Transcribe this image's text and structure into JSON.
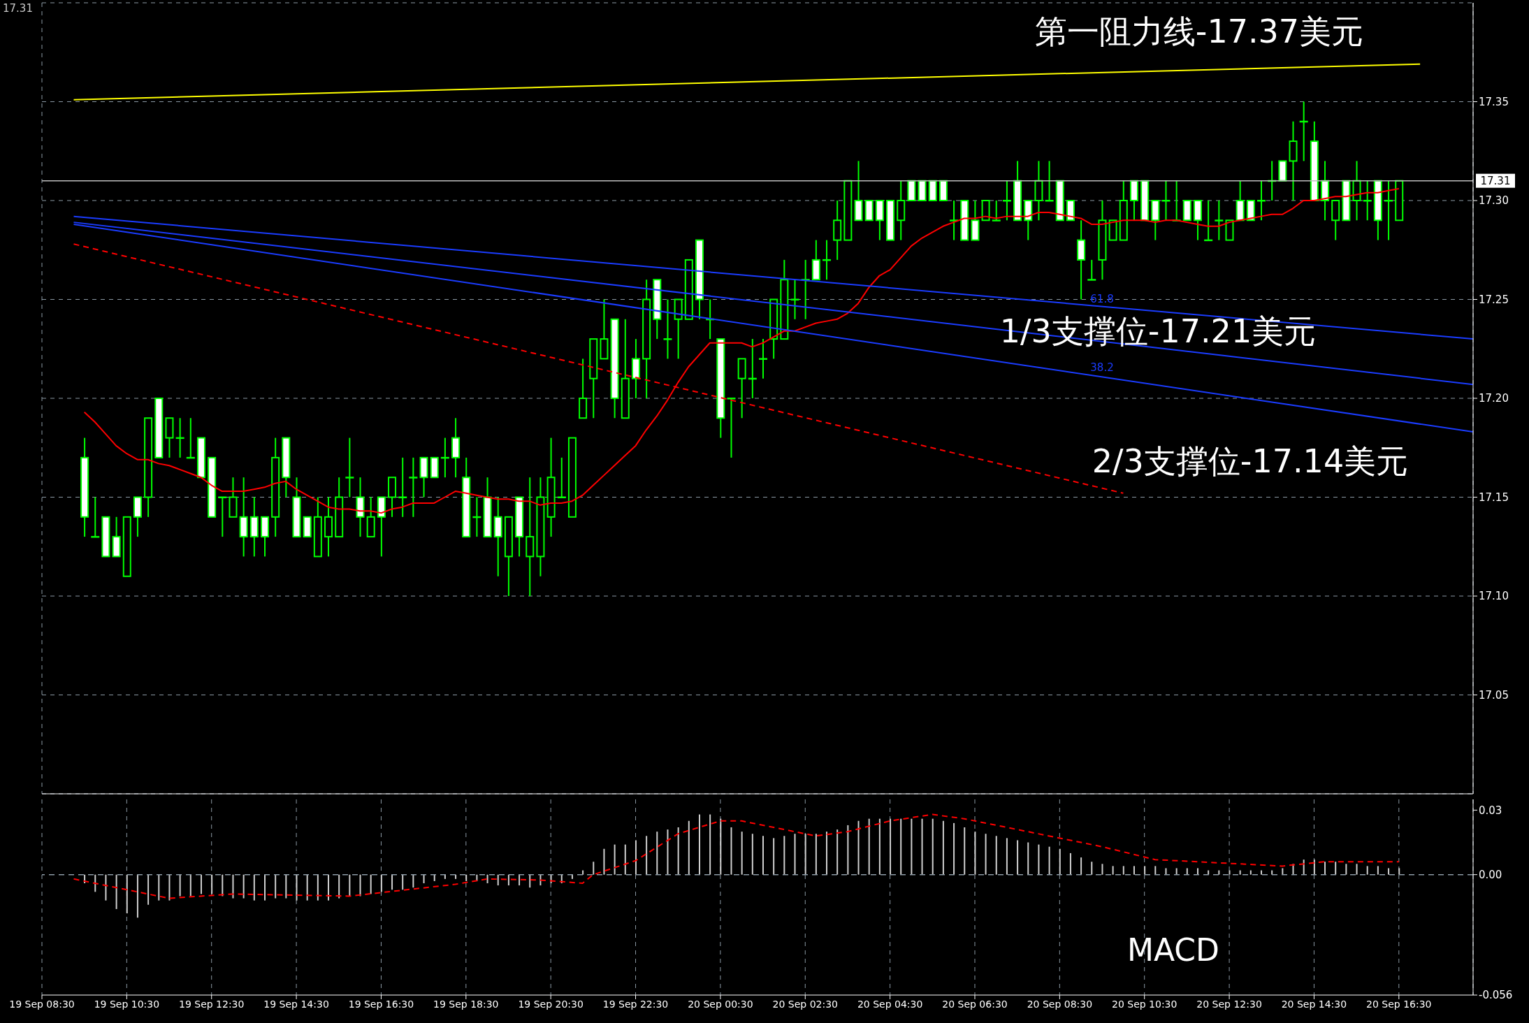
{
  "chart_data": [
    {
      "type": "candlestick",
      "x": [
        "--09-19T09:30",
        "--09-19T09:45",
        "--09-19T10:00",
        "--09-19T10:15",
        "--09-19T10:30",
        "--09-19T10:45",
        "--09-19T11:00",
        "--09-19T11:15",
        "--09-19T11:30",
        "--09-19T11:45",
        "--09-19T12:00",
        "--09-19T12:15",
        "--09-19T12:30",
        "--09-19T12:45",
        "--09-19T13:00",
        "--09-19T13:15",
        "--09-19T13:30",
        "--09-19T13:45",
        "--09-19T14:00",
        "--09-19T14:15",
        "--09-19T14:30",
        "--09-19T14:45",
        "--09-19T15:00",
        "--09-19T15:15",
        "--09-19T15:30",
        "--09-19T15:45",
        "--09-19T16:00",
        "--09-19T16:15",
        "--09-19T16:30",
        "--09-19T16:45",
        "--09-19T17:00",
        "--09-19T17:15",
        "--09-19T17:30",
        "--09-19T17:45",
        "--09-19T18:00",
        "--09-19T18:15",
        "--09-19T18:30",
        "--09-19T18:45",
        "--09-19T19:00",
        "--09-19T19:15",
        "--09-19T19:30",
        "--09-19T19:45",
        "--09-19T20:00",
        "--09-19T20:15",
        "--09-19T20:30",
        "--09-19T20:45",
        "--09-19T21:00",
        "--09-19T21:15",
        "--09-19T21:30",
        "--09-19T21:45",
        "--09-19T22:00",
        "--09-19T22:15",
        "--09-19T22:30",
        "--09-19T22:45",
        "--09-19T23:00",
        "--09-19T23:15",
        "--09-19T23:30",
        "--09-19T23:45",
        "--09-20T00:00",
        "--09-20T00:15",
        "--09-20T00:30",
        "--09-20T00:45",
        "--09-20T01:00",
        "--09-20T01:15",
        "--09-20T01:30",
        "--09-20T01:45",
        "--09-20T02:00",
        "--09-20T02:15",
        "--09-20T02:30",
        "--09-20T02:45",
        "--09-20T03:00",
        "--09-20T03:15",
        "--09-20T03:30",
        "--09-20T03:45",
        "--09-20T04:00",
        "--09-20T04:15",
        "--09-20T04:30",
        "--09-20T04:45",
        "--09-20T05:00",
        "--09-20T05:15",
        "--09-20T05:30",
        "--09-20T05:45",
        "--09-20T06:00",
        "--09-20T06:15",
        "--09-20T06:30",
        "--09-20T06:45",
        "--09-20T07:00",
        "--09-20T07:15",
        "--09-20T07:30",
        "--09-20T07:45",
        "--09-20T08:00",
        "--09-20T08:15",
        "--09-20T08:30",
        "--09-20T08:45",
        "--09-20T09:00",
        "--09-20T09:15",
        "--09-20T09:30",
        "--09-20T09:45",
        "--09-20T10:00",
        "--09-20T10:15",
        "--09-20T10:30",
        "--09-20T10:45",
        "--09-20T11:00",
        "--09-20T11:15",
        "--09-20T11:30",
        "--09-20T11:45",
        "--09-20T12:00",
        "--09-20T12:15",
        "--09-20T12:30",
        "--09-20T12:45",
        "--09-20T13:00",
        "--09-20T13:15",
        "--09-20T13:30",
        "--09-20T13:45",
        "--09-20T14:00",
        "--09-20T14:15",
        "--09-20T14:30",
        "--09-20T14:45",
        "--09-20T15:00",
        "--09-20T15:15",
        "--09-20T15:30",
        "--09-20T15:45",
        "--09-20T16:00",
        "--09-20T16:15",
        "--09-20T16:30"
      ],
      "series": [
        {
          "color": "#00ff00",
          "ohlc": [
            [
              17.17,
              17.18,
              17.13,
              17.14
            ],
            [
              17.13,
              17.15,
              17.13,
              17.13
            ],
            [
              17.14,
              17.14,
              17.12,
              17.12
            ],
            [
              17.13,
              17.14,
              17.12,
              17.12
            ],
            [
              17.11,
              17.14,
              17.11,
              17.14
            ],
            [
              17.15,
              17.15,
              17.13,
              17.14
            ],
            [
              17.15,
              17.19,
              17.14,
              17.19
            ],
            [
              17.2,
              17.2,
              17.17,
              17.17
            ],
            [
              17.18,
              17.19,
              17.17,
              17.19
            ],
            [
              17.18,
              17.19,
              17.17,
              17.18
            ],
            [
              17.17,
              17.19,
              17.17,
              17.17
            ],
            [
              17.18,
              17.18,
              17.16,
              17.16
            ],
            [
              17.17,
              17.17,
              17.14,
              17.14
            ],
            [
              17.15,
              17.15,
              17.13,
              17.15
            ],
            [
              17.14,
              17.16,
              17.14,
              17.15
            ],
            [
              17.14,
              17.16,
              17.12,
              17.13
            ],
            [
              17.14,
              17.15,
              17.12,
              17.13
            ],
            [
              17.14,
              17.14,
              17.12,
              17.13
            ],
            [
              17.14,
              17.18,
              17.13,
              17.17
            ],
            [
              17.18,
              17.18,
              17.15,
              17.16
            ],
            [
              17.15,
              17.16,
              17.13,
              17.13
            ],
            [
              17.14,
              17.14,
              17.13,
              17.13
            ],
            [
              17.12,
              17.15,
              17.12,
              17.14
            ],
            [
              17.13,
              17.15,
              17.12,
              17.14
            ],
            [
              17.13,
              17.16,
              17.13,
              17.15
            ],
            [
              17.16,
              17.18,
              17.15,
              17.16
            ],
            [
              17.15,
              17.16,
              17.13,
              17.14
            ],
            [
              17.13,
              17.15,
              17.13,
              17.14
            ],
            [
              17.15,
              17.15,
              17.12,
              17.14
            ],
            [
              17.15,
              17.16,
              17.14,
              17.16
            ],
            [
              17.15,
              17.17,
              17.14,
              17.15
            ],
            [
              17.16,
              17.17,
              17.14,
              17.16
            ],
            [
              17.17,
              17.17,
              17.15,
              17.16
            ],
            [
              17.17,
              17.17,
              17.16,
              17.16
            ],
            [
              17.17,
              17.18,
              17.16,
              17.17
            ],
            [
              17.18,
              17.19,
              17.16,
              17.17
            ],
            [
              17.16,
              17.17,
              17.13,
              17.13
            ],
            [
              17.14,
              17.15,
              17.13,
              17.14
            ],
            [
              17.15,
              17.16,
              17.13,
              17.13
            ],
            [
              17.14,
              17.15,
              17.11,
              17.13
            ],
            [
              17.12,
              17.14,
              17.1,
              17.14
            ],
            [
              17.15,
              17.15,
              17.12,
              17.13
            ],
            [
              17.12,
              17.16,
              17.1,
              17.13
            ],
            [
              17.12,
              17.16,
              17.11,
              17.15
            ],
            [
              17.14,
              17.18,
              17.13,
              17.16
            ],
            [
              17.15,
              17.17,
              17.15,
              17.15
            ],
            [
              17.14,
              17.18,
              17.14,
              17.18
            ],
            [
              17.19,
              17.22,
              17.19,
              17.2
            ],
            [
              17.21,
              17.23,
              17.19,
              17.23
            ],
            [
              17.22,
              17.25,
              17.22,
              17.23
            ],
            [
              17.24,
              17.24,
              17.19,
              17.2
            ],
            [
              17.19,
              17.24,
              17.19,
              17.21
            ],
            [
              17.22,
              17.23,
              17.2,
              17.21
            ],
            [
              17.22,
              17.26,
              17.2,
              17.25
            ],
            [
              17.26,
              17.26,
              17.23,
              17.24
            ],
            [
              17.23,
              17.25,
              17.22,
              17.23
            ],
            [
              17.24,
              17.25,
              17.22,
              17.25
            ],
            [
              17.24,
              17.27,
              17.24,
              17.27
            ],
            [
              17.28,
              17.28,
              17.24,
              17.25
            ],
            [
              17.24,
              17.25,
              17.23,
              17.24
            ],
            [
              17.23,
              17.23,
              17.18,
              17.19
            ],
            [
              17.2,
              17.2,
              17.17,
              17.2
            ],
            [
              17.21,
              17.22,
              17.19,
              17.22
            ],
            [
              17.21,
              17.23,
              17.2,
              17.21
            ],
            [
              17.22,
              17.23,
              17.21,
              17.22
            ],
            [
              17.23,
              17.25,
              17.22,
              17.25
            ],
            [
              17.23,
              17.27,
              17.23,
              17.26
            ],
            [
              17.25,
              17.26,
              17.24,
              17.25
            ],
            [
              17.26,
              17.27,
              17.24,
              17.26
            ],
            [
              17.27,
              17.28,
              17.26,
              17.26
            ],
            [
              17.27,
              17.28,
              17.26,
              17.27
            ],
            [
              17.28,
              17.3,
              17.27,
              17.29
            ],
            [
              17.28,
              17.31,
              17.28,
              17.31
            ],
            [
              17.3,
              17.32,
              17.29,
              17.29
            ],
            [
              17.3,
              17.3,
              17.29,
              17.29
            ],
            [
              17.3,
              17.3,
              17.28,
              17.29
            ],
            [
              17.3,
              17.3,
              17.28,
              17.28
            ],
            [
              17.29,
              17.31,
              17.28,
              17.3
            ],
            [
              17.31,
              17.31,
              17.3,
              17.3
            ],
            [
              17.31,
              17.31,
              17.3,
              17.3
            ],
            [
              17.31,
              17.31,
              17.3,
              17.3
            ],
            [
              17.31,
              17.31,
              17.3,
              17.3
            ],
            [
              17.29,
              17.3,
              17.28,
              17.29
            ],
            [
              17.3,
              17.3,
              17.28,
              17.28
            ],
            [
              17.29,
              17.3,
              17.28,
              17.28
            ],
            [
              17.29,
              17.3,
              17.29,
              17.3
            ],
            [
              17.29,
              17.3,
              17.29,
              17.29
            ],
            [
              17.3,
              17.31,
              17.29,
              17.3
            ],
            [
              17.31,
              17.32,
              17.29,
              17.29
            ],
            [
              17.3,
              17.3,
              17.28,
              17.29
            ],
            [
              17.3,
              17.32,
              17.29,
              17.31
            ],
            [
              17.3,
              17.32,
              17.3,
              17.3
            ],
            [
              17.31,
              17.31,
              17.29,
              17.29
            ],
            [
              17.3,
              17.3,
              17.29,
              17.29
            ],
            [
              17.28,
              17.29,
              17.25,
              17.27
            ],
            [
              17.26,
              17.27,
              17.26,
              17.26
            ],
            [
              17.27,
              17.3,
              17.26,
              17.29
            ],
            [
              17.28,
              17.29,
              17.28,
              17.29
            ],
            [
              17.28,
              17.31,
              17.28,
              17.3
            ],
            [
              17.31,
              17.31,
              17.29,
              17.3
            ],
            [
              17.31,
              17.31,
              17.29,
              17.29
            ],
            [
              17.3,
              17.3,
              17.28,
              17.29
            ],
            [
              17.3,
              17.31,
              17.29,
              17.3
            ],
            [
              17.29,
              17.31,
              17.29,
              17.29
            ],
            [
              17.3,
              17.3,
              17.29,
              17.29
            ],
            [
              17.3,
              17.3,
              17.28,
              17.29
            ],
            [
              17.28,
              17.3,
              17.28,
              17.28
            ],
            [
              17.29,
              17.3,
              17.28,
              17.29
            ],
            [
              17.28,
              17.29,
              17.28,
              17.29
            ],
            [
              17.3,
              17.31,
              17.29,
              17.29
            ],
            [
              17.3,
              17.3,
              17.29,
              17.29
            ],
            [
              17.3,
              17.31,
              17.29,
              17.3
            ],
            [
              17.31,
              17.32,
              17.3,
              17.31
            ],
            [
              17.32,
              17.32,
              17.31,
              17.31
            ],
            [
              17.32,
              17.34,
              17.3,
              17.33
            ],
            [
              17.34,
              17.35,
              17.32,
              17.34
            ],
            [
              17.33,
              17.34,
              17.3,
              17.3
            ],
            [
              17.31,
              17.32,
              17.29,
              17.3
            ],
            [
              17.29,
              17.3,
              17.28,
              17.3
            ],
            [
              17.31,
              17.31,
              17.29,
              17.29
            ],
            [
              17.3,
              17.32,
              17.29,
              17.31
            ],
            [
              17.3,
              17.31,
              17.29,
              17.3
            ],
            [
              17.31,
              17.31,
              17.28,
              17.29
            ],
            [
              17.3,
              17.31,
              17.28,
              17.3
            ],
            [
              17.29,
              17.31,
              17.29,
              17.31
            ]
          ]
        },
        {
          "type": "line",
          "color": "#ff0000",
          "values": [
            17.193,
            17.188,
            17.182,
            17.176,
            17.172,
            17.169,
            17.169,
            17.167,
            17.166,
            17.164,
            17.162,
            17.16,
            17.156,
            17.153,
            17.153,
            17.153,
            17.154,
            17.155,
            17.157,
            17.158,
            17.154,
            17.151,
            17.148,
            17.145,
            17.144,
            17.144,
            17.143,
            17.143,
            17.142,
            17.144,
            17.145,
            17.147,
            17.147,
            17.147,
            17.15,
            17.153,
            17.152,
            17.151,
            17.15,
            17.149,
            17.149,
            17.148,
            17.148,
            17.146,
            17.147,
            17.147,
            17.148,
            17.151,
            17.156,
            17.161,
            17.166,
            17.171,
            17.176,
            17.184,
            17.191,
            17.199,
            17.208,
            17.216,
            17.222,
            17.228,
            17.228,
            17.228,
            17.228,
            17.226,
            17.228,
            17.231,
            17.234,
            17.234,
            17.236,
            17.238,
            17.239,
            17.24,
            17.243,
            17.248,
            17.256,
            17.262,
            17.265,
            17.271,
            17.277,
            17.281,
            17.284,
            17.287,
            17.289,
            17.291,
            17.291,
            17.292,
            17.291,
            17.292,
            17.292,
            17.292,
            17.294,
            17.294,
            17.293,
            17.292,
            17.291,
            17.288,
            17.288,
            17.289,
            17.29,
            17.29,
            17.29,
            17.289,
            17.29,
            17.29,
            17.289,
            17.288,
            17.287,
            17.287,
            17.289,
            17.29,
            17.291,
            17.292,
            17.293,
            17.293,
            17.296,
            17.3,
            17.3,
            17.301,
            17.302,
            17.302,
            17.303,
            17.304,
            17.304,
            17.305,
            17.306
          ]
        },
        {
          "type": "line",
          "color": "#ff0000",
          "line_style": "dashed",
          "x": [
            "--09-19T09:15",
            "--09-20T10:00"
          ],
          "values": [
            17.278,
            17.152
          ]
        },
        {
          "type": "line",
          "color": "#1a3cff",
          "x": [
            "--09-19T09:15",
            "--09-20T18:15"
          ],
          "values": [
            17.292,
            17.23
          ]
        },
        {
          "type": "line",
          "color": "#1a3cff",
          "x": [
            "--09-19T09:15",
            "--09-20T18:15"
          ],
          "values": [
            17.289,
            17.207
          ]
        },
        {
          "type": "line",
          "color": "#1a3cff",
          "x": [
            "--09-19T09:15",
            "--09-20T18:15"
          ],
          "values": [
            17.288,
            17.183
          ]
        },
        {
          "type": "line",
          "color": "#ffff00",
          "x": [
            "--09-19T09:15",
            "--09-20T17:00"
          ],
          "values": [
            17.351,
            17.369
          ]
        }
      ],
      "xlim": [
        "--09-19T08:30",
        "--09-20T18:15"
      ],
      "xticks": [
        {
          "value": "--09-19T08:30",
          "label": "19 Sep 08:30"
        },
        {
          "value": "--09-19T10:30",
          "label": "19 Sep 10:30"
        },
        {
          "value": "--09-19T12:30",
          "label": "19 Sep 12:30"
        },
        {
          "value": "--09-19T14:30",
          "label": "19 Sep 14:30"
        },
        {
          "value": "--09-19T16:30",
          "label": "19 Sep 16:30"
        },
        {
          "value": "--09-19T18:30",
          "label": "19 Sep 18:30"
        },
        {
          "value": "--09-19T20:30",
          "label": "19 Sep 20:30"
        },
        {
          "value": "--09-19T22:30",
          "label": "19 Sep 22:30"
        },
        {
          "value": "--09-20T00:30",
          "label": "20 Sep 00:30"
        },
        {
          "value": "--09-20T02:30",
          "label": "20 Sep 02:30"
        },
        {
          "value": "--09-20T04:30",
          "label": "20 Sep 04:30"
        },
        {
          "value": "--09-20T06:30",
          "label": "20 Sep 06:30"
        },
        {
          "value": "--09-20T08:30",
          "label": "20 Sep 08:30"
        },
        {
          "value": "--09-20T10:30",
          "label": "20 Sep 10:30"
        },
        {
          "value": "--09-20T12:30",
          "label": "20 Sep 12:30"
        },
        {
          "value": "--09-20T14:30",
          "label": "20 Sep 14:30"
        },
        {
          "value": "--09-20T16:30",
          "label": "20 Sep 16:30"
        }
      ],
      "ylim": [
        17.0,
        17.4
      ],
      "yticks": [
        17.05,
        {
          "value": 17.1,
          "label": "17.10"
        },
        17.15,
        {
          "value": 17.2,
          "label": "17.20"
        },
        17.25,
        {
          "value": 17.3,
          "label": "17.30"
        },
        17.35
      ],
      "grid": true,
      "tick_labels": "y",
      "ref_lines": [
        {
          "axis": "y",
          "value": 17.31,
          "label": "17.31",
          "color": "#c0c0c0"
        }
      ],
      "annotations": [
        "17.31",
        "第一阻力线-17.37美元",
        "1/3支撑位-17.21美元",
        "2/3支撑位-17.14美元",
        "61.8",
        "38.2"
      ]
    },
    {
      "type": "bar",
      "x": [
        "--09-19T09:30",
        "--09-19T09:45",
        "--09-19T10:00",
        "--09-19T10:15",
        "--09-19T10:30",
        "--09-19T10:45",
        "--09-19T11:00",
        "--09-19T11:15",
        "--09-19T11:30",
        "--09-19T11:45",
        "--09-19T12:00",
        "--09-19T12:15",
        "--09-19T12:30",
        "--09-19T12:45",
        "--09-19T13:00",
        "--09-19T13:15",
        "--09-19T13:30",
        "--09-19T13:45",
        "--09-19T14:00",
        "--09-19T14:15",
        "--09-19T14:30",
        "--09-19T14:45",
        "--09-19T15:00",
        "--09-19T15:15",
        "--09-19T15:30",
        "--09-19T15:45",
        "--09-19T16:00",
        "--09-19T16:15",
        "--09-19T16:30",
        "--09-19T16:45",
        "--09-19T17:00",
        "--09-19T17:15",
        "--09-19T17:30",
        "--09-19T17:45",
        "--09-19T18:00",
        "--09-19T18:15",
        "--09-19T18:30",
        "--09-19T18:45",
        "--09-19T19:00",
        "--09-19T19:15",
        "--09-19T19:30",
        "--09-19T19:45",
        "--09-19T20:00",
        "--09-19T20:15",
        "--09-19T20:30",
        "--09-19T20:45",
        "--09-19T21:00",
        "--09-19T21:15",
        "--09-19T21:30",
        "--09-19T21:45",
        "--09-19T22:00",
        "--09-19T22:15",
        "--09-19T22:30",
        "--09-19T22:45",
        "--09-19T23:00",
        "--09-19T23:15",
        "--09-19T23:30",
        "--09-19T23:45",
        "--09-20T00:00",
        "--09-20T00:15",
        "--09-20T00:30",
        "--09-20T00:45",
        "--09-20T01:00",
        "--09-20T01:15",
        "--09-20T01:30",
        "--09-20T01:45",
        "--09-20T02:00",
        "--09-20T02:15",
        "--09-20T02:30",
        "--09-20T02:45",
        "--09-20T03:00",
        "--09-20T03:15",
        "--09-20T03:30",
        "--09-20T03:45",
        "--09-20T04:00",
        "--09-20T04:15",
        "--09-20T04:30",
        "--09-20T04:45",
        "--09-20T05:00",
        "--09-20T05:15",
        "--09-20T05:30",
        "--09-20T05:45",
        "--09-20T06:00",
        "--09-20T06:15",
        "--09-20T06:30",
        "--09-20T06:45",
        "--09-20T07:00",
        "--09-20T07:15",
        "--09-20T07:30",
        "--09-20T07:45",
        "--09-20T08:00",
        "--09-20T08:15",
        "--09-20T08:30",
        "--09-20T08:45",
        "--09-20T09:00",
        "--09-20T09:15",
        "--09-20T09:30",
        "--09-20T09:45",
        "--09-20T10:00",
        "--09-20T10:15",
        "--09-20T10:30",
        "--09-20T10:45",
        "--09-20T11:00",
        "--09-20T11:15",
        "--09-20T11:30",
        "--09-20T11:45",
        "--09-20T12:00",
        "--09-20T12:15",
        "--09-20T12:30",
        "--09-20T12:45",
        "--09-20T13:00",
        "--09-20T13:15",
        "--09-20T13:30",
        "--09-20T13:45",
        "--09-20T14:00",
        "--09-20T14:15",
        "--09-20T14:30",
        "--09-20T14:45",
        "--09-20T15:00",
        "--09-20T15:15",
        "--09-20T15:30",
        "--09-20T15:45",
        "--09-20T16:00",
        "--09-20T16:15",
        "--09-20T16:30"
      ],
      "series": [
        {
          "color": "#d0d0d0",
          "values": [
            -0.004,
            -0.008,
            -0.012,
            -0.016,
            -0.018,
            -0.02,
            -0.014,
            -0.012,
            -0.012,
            -0.01,
            -0.01,
            -0.009,
            -0.009,
            -0.01,
            -0.011,
            -0.011,
            -0.012,
            -0.012,
            -0.011,
            -0.011,
            -0.012,
            -0.012,
            -0.012,
            -0.012,
            -0.011,
            -0.01,
            -0.01,
            -0.009,
            -0.008,
            -0.007,
            -0.007,
            -0.006,
            -0.004,
            -0.003,
            -0.002,
            -0.002,
            -0.003,
            -0.003,
            -0.004,
            -0.005,
            -0.005,
            -0.005,
            -0.006,
            -0.005,
            -0.004,
            -0.004,
            -0.002,
            0.002,
            0.006,
            0.012,
            0.014,
            0.014,
            0.016,
            0.018,
            0.02,
            0.021,
            0.022,
            0.025,
            0.028,
            0.028,
            0.026,
            0.022,
            0.02,
            0.019,
            0.018,
            0.017,
            0.018,
            0.019,
            0.019,
            0.019,
            0.02,
            0.021,
            0.023,
            0.025,
            0.026,
            0.026,
            0.026,
            0.026,
            0.026,
            0.026,
            0.026,
            0.025,
            0.024,
            0.022,
            0.02,
            0.019,
            0.018,
            0.017,
            0.016,
            0.015,
            0.014,
            0.013,
            0.012,
            0.01,
            0.008,
            0.006,
            0.005,
            0.004,
            0.004,
            0.004,
            0.004,
            0.004,
            0.003,
            0.003,
            0.003,
            0.003,
            0.002,
            0.002,
            0.002,
            0.002,
            0.002,
            0.002,
            0.002,
            0.003,
            0.005,
            0.007,
            0.007,
            0.006,
            0.006,
            0.005,
            0.005,
            0.004,
            0.004,
            0.003,
            0.003
          ]
        },
        {
          "type": "line",
          "color": "#ff0000",
          "line_style": "dashed",
          "x": [
            "--09-19T09:15",
            "--09-19T11:30",
            "--09-19T13:00",
            "--09-19T15:45",
            "--09-19T18:15",
            "--09-19T19:00",
            "--09-19T20:15",
            "--09-19T21:15",
            "--09-19T21:30",
            "--09-19T22:30",
            "--09-19T23:30",
            "--09-20T00:30",
            "--09-20T01:00",
            "--09-20T02:45",
            "--09-20T03:30",
            "--09-20T04:30",
            "--09-20T05:30",
            "--09-20T06:15",
            "--09-20T07:45",
            "--09-20T09:30",
            "--09-20T10:45",
            "--09-20T12:45",
            "--09-20T13:45",
            "--09-20T14:45",
            "--09-20T16:30"
          ],
          "values": [
            -0.002,
            -0.011,
            -0.009,
            -0.01,
            -0.0045,
            -0.002,
            -0.0025,
            -0.004,
            0,
            0.0065,
            0.019,
            0.025,
            0.025,
            0.018,
            0.02,
            0.025,
            0.028,
            0.026,
            0.02,
            0.013,
            0.007,
            0.005,
            0.004,
            0.006,
            0.006
          ]
        }
      ],
      "xlim": [
        "--09-19T08:30",
        "--09-20T18:15"
      ],
      "xticks": [
        {
          "value": "--09-19T08:30",
          "label": "19 Sep 08:30"
        },
        {
          "value": "--09-19T10:30",
          "label": "19 Sep 10:30"
        },
        {
          "value": "--09-19T12:30",
          "label": "19 Sep 12:30"
        },
        {
          "value": "--09-19T14:30",
          "label": "19 Sep 14:30"
        },
        {
          "value": "--09-19T16:30",
          "label": "19 Sep 16:30"
        },
        {
          "value": "--09-19T18:30",
          "label": "19 Sep 18:30"
        },
        {
          "value": "--09-19T20:30",
          "label": "19 Sep 20:30"
        },
        {
          "value": "--09-19T22:30",
          "label": "19 Sep 22:30"
        },
        {
          "value": "--09-20T00:30",
          "label": "20 Sep 00:30"
        },
        {
          "value": "--09-20T02:30",
          "label": "20 Sep 02:30"
        },
        {
          "value": "--09-20T04:30",
          "label": "20 Sep 04:30"
        },
        {
          "value": "--09-20T06:30",
          "label": "20 Sep 06:30"
        },
        {
          "value": "--09-20T08:30",
          "label": "20 Sep 08:30"
        },
        {
          "value": "--09-20T10:30",
          "label": "20 Sep 10:30"
        },
        {
          "value": "--09-20T12:30",
          "label": "20 Sep 12:30"
        },
        {
          "value": "--09-20T14:30",
          "label": "20 Sep 14:30"
        },
        {
          "value": "--09-20T16:30",
          "label": "20 Sep 16:30"
        }
      ],
      "ylim": [
        -0.056,
        0.035
      ],
      "yticks": [
        {
          "value": 0.03,
          "label": "0.03"
        },
        {
          "value": 0,
          "label": "0.00"
        },
        {
          "value": -0.056,
          "label": "-0.056"
        }
      ],
      "grid": "x",
      "ref_lines": [
        {
          "axis": "y",
          "value": 0,
          "color": "#8c9aa5",
          "line_style": "dashed"
        }
      ],
      "annotations": [
        "MACD"
      ]
    }
  ]
}
